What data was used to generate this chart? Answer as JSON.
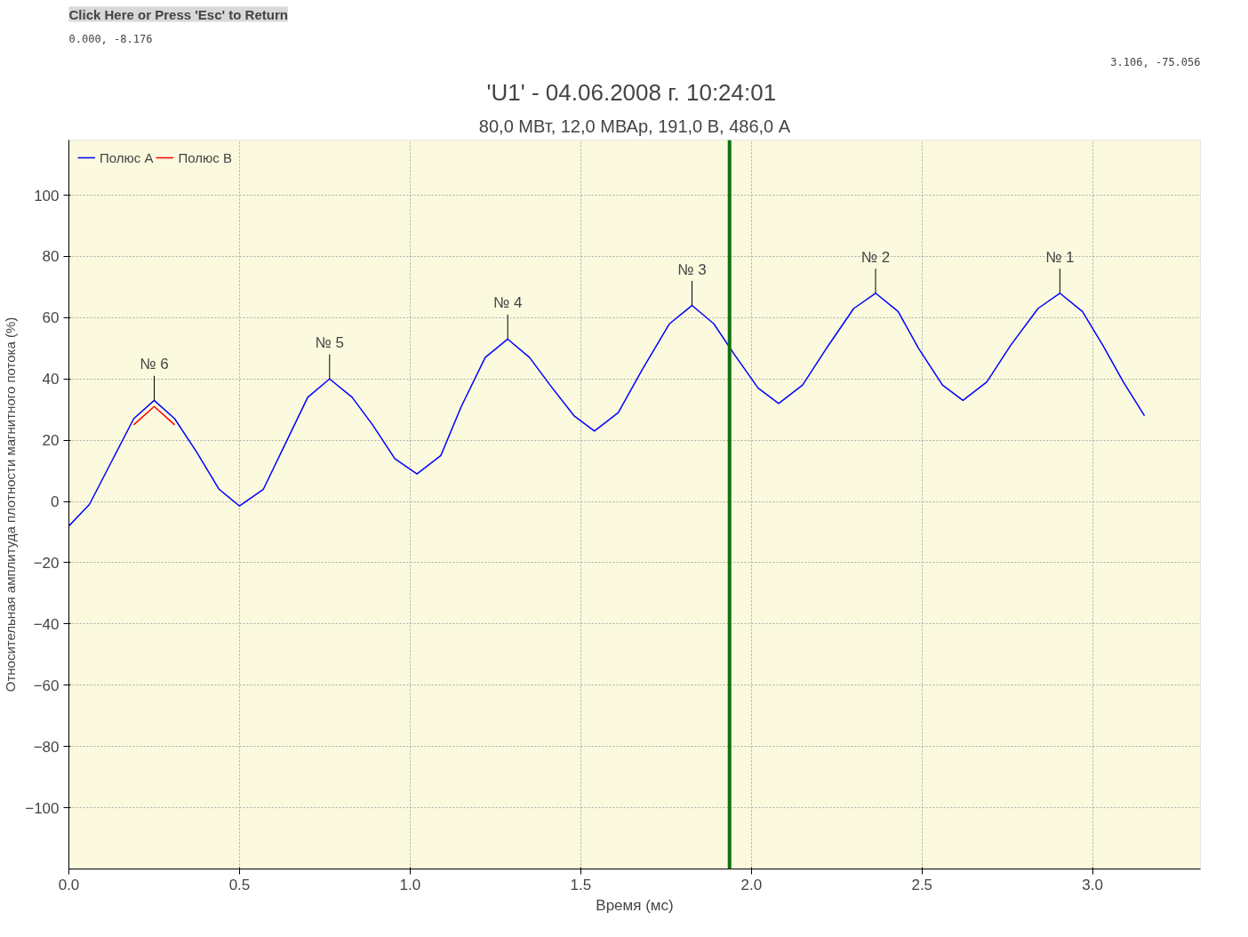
{
  "chart_data": {
    "type": "line",
    "title": "'U1' -  04.06.2008 г. 10:24:01",
    "subtitle": "80,0 МВт, 12,0 МВАр, 191,0 В, 486,0 А",
    "xlabel": "Время (мс)",
    "ylabel": "Относительная амплитуда плотности магнитного потока (%)",
    "annotations": [
      "Click Here or Press 'Esc' to Return",
      "0.000, -8.176",
      "3.106, -75.056",
      {
        "text": "№ 6",
        "x": 0.25,
        "y": 33
      },
      {
        "text": "№ 5",
        "x": 0.764,
        "y": 40
      },
      {
        "text": "№ 4",
        "x": 1.286,
        "y": 53
      },
      {
        "text": "№ 3",
        "x": 1.826,
        "y": 64
      },
      {
        "text": "№ 2",
        "x": 2.364,
        "y": 68
      },
      {
        "text": "№ 1",
        "x": 2.904,
        "y": 68
      }
    ],
    "x": [
      0.0,
      0.06,
      0.125,
      0.19,
      0.25,
      0.31,
      0.375,
      0.44,
      0.5,
      0.57,
      0.635,
      0.7,
      0.764,
      0.83,
      0.89,
      0.955,
      1.02,
      1.09,
      1.15,
      1.22,
      1.286,
      1.35,
      1.41,
      1.48,
      1.54,
      1.61,
      1.68,
      1.76,
      1.826,
      1.89,
      1.95,
      2.02,
      2.08,
      2.15,
      2.22,
      2.3,
      2.364,
      2.43,
      2.49,
      2.56,
      2.62,
      2.69,
      2.76,
      2.84,
      2.904,
      2.97,
      3.03,
      3.09,
      3.152
    ],
    "series": [
      {
        "name": "Полюс A",
        "color": "#0000ff",
        "values": [
          -8,
          -1,
          13,
          27,
          33,
          27,
          16,
          4,
          -1.5,
          4,
          19,
          34,
          40,
          34,
          25,
          14,
          9,
          15,
          31,
          47,
          53,
          47,
          38,
          28,
          23,
          29,
          43,
          58,
          64,
          58,
          48,
          37,
          32,
          38,
          50,
          63,
          68,
          62,
          50,
          38,
          33,
          39,
          51,
          63,
          68,
          62,
          51,
          39,
          28
        ]
      },
      {
        "name": "Полюс B",
        "color": "#ff0000",
        "values": [
          null,
          null,
          null,
          25,
          31,
          25,
          null,
          null,
          null,
          null,
          null,
          null,
          null,
          null,
          null,
          null,
          null,
          null,
          null,
          null,
          null,
          null,
          null,
          null,
          null,
          null,
          null,
          null,
          null,
          null,
          null,
          null,
          null,
          null,
          null,
          null,
          null,
          null,
          null,
          null,
          null,
          null,
          null,
          null,
          null,
          null,
          null,
          null,
          null
        ]
      }
    ],
    "xlim": [
      0,
      3.316
    ],
    "ylim": [
      -120,
      118
    ],
    "xticks": [
      {
        "value": 0,
        "label": "0.0"
      },
      {
        "value": 0.5,
        "label": "0.5"
      },
      {
        "value": 1,
        "label": "1.0"
      },
      {
        "value": 1.5,
        "label": "1.5"
      },
      {
        "value": 2,
        "label": "2.0"
      },
      {
        "value": 2.5,
        "label": "2.5"
      },
      {
        "value": 3,
        "label": "3.0"
      }
    ],
    "yticks": [
      -100,
      -80,
      -60,
      -40,
      -20,
      0,
      20,
      40,
      60,
      80,
      100
    ],
    "ref_lines": [
      {
        "axis": "x",
        "value": 1.936,
        "color": "#107010"
      }
    ],
    "grid": true,
    "legend": "top left",
    "marker": "none",
    "line_style": "solid"
  }
}
